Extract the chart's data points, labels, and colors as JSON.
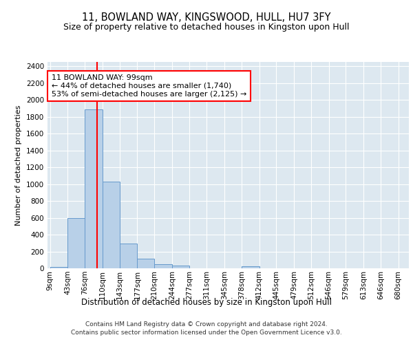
{
  "title": "11, BOWLAND WAY, KINGSWOOD, HULL, HU7 3FY",
  "subtitle": "Size of property relative to detached houses in Kingston upon Hull",
  "xlabel": "Distribution of detached houses by size in Kingston upon Hull",
  "ylabel": "Number of detached properties",
  "bar_edges": [
    9,
    43,
    76,
    110,
    143,
    177,
    210,
    244,
    277,
    311,
    345,
    378,
    412,
    445,
    479,
    512,
    546,
    579,
    613,
    646,
    680
  ],
  "bar_heights": [
    15,
    600,
    1890,
    1030,
    290,
    115,
    47,
    30,
    0,
    0,
    0,
    25,
    0,
    0,
    0,
    0,
    0,
    0,
    0,
    0
  ],
  "bar_color": "#b8d0e8",
  "bar_edge_color": "#6699cc",
  "property_line_x": 99,
  "property_line_color": "red",
  "annotation_text": "11 BOWLAND WAY: 99sqm\n← 44% of detached houses are smaller (1,740)\n53% of semi-detached houses are larger (2,125) →",
  "annotation_box_color": "red",
  "ylim": [
    0,
    2450
  ],
  "yticks": [
    0,
    200,
    400,
    600,
    800,
    1000,
    1200,
    1400,
    1600,
    1800,
    2000,
    2200,
    2400
  ],
  "background_color": "#dde8f0",
  "grid_color": "white",
  "footer_line1": "Contains HM Land Registry data © Crown copyright and database right 2024.",
  "footer_line2": "Contains public sector information licensed under the Open Government Licence v3.0.",
  "title_fontsize": 10.5,
  "subtitle_fontsize": 9,
  "xlabel_fontsize": 8.5,
  "ylabel_fontsize": 8,
  "tick_fontsize": 7.5,
  "annotation_fontsize": 8,
  "footer_fontsize": 6.5
}
